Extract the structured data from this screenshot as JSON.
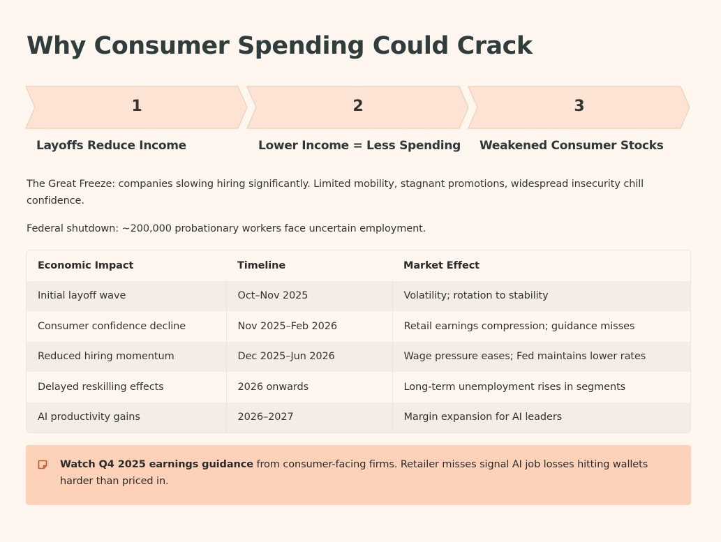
{
  "page": {
    "title": "Why Consumer Spending Could Crack"
  },
  "steps": [
    {
      "number": "1",
      "label": "Layoffs Reduce Income"
    },
    {
      "number": "2",
      "label": "Lower Income = Less Spending"
    },
    {
      "number": "3",
      "label": "Weakened Consumer Stocks"
    }
  ],
  "paragraphs": {
    "freeze": "The Great Freeze: companies slowing hiring significantly. Limited mobility, stagnant promotions, widespread insecurity chill confidence.",
    "shutdown": "Federal shutdown: ~200,000 probationary workers face uncertain employment."
  },
  "table": {
    "headers": [
      "Economic Impact",
      "Timeline",
      "Market Effect"
    ],
    "rows": [
      [
        "Initial layoff wave",
        "Oct–Nov 2025",
        "Volatility; rotation to stability"
      ],
      [
        "Consumer confidence decline",
        "Nov 2025–Feb 2026",
        "Retail earnings compression; guidance misses"
      ],
      [
        "Reduced hiring momentum",
        "Dec 2025–Jun 2026",
        "Wage pressure eases; Fed maintains lower rates"
      ],
      [
        "Delayed reskilling effects",
        "2026 onwards",
        "Long-term unemployment rises in segments"
      ],
      [
        "AI productivity gains",
        "2026–2027",
        "Margin expansion for AI leaders"
      ]
    ]
  },
  "callout": {
    "icon": "note-icon",
    "bold": "Watch Q4 2025 earnings guidance",
    "text": " from consumer-facing firms. Retailer misses signal AI job losses hitting wallets harder than priced in."
  },
  "colors": {
    "background": "#fef6ef",
    "chevron_fill": "#fde3d3",
    "chevron_stroke": "#f5cfb5",
    "callout_bg": "#fdd2b8",
    "accent": "#c4562a"
  }
}
